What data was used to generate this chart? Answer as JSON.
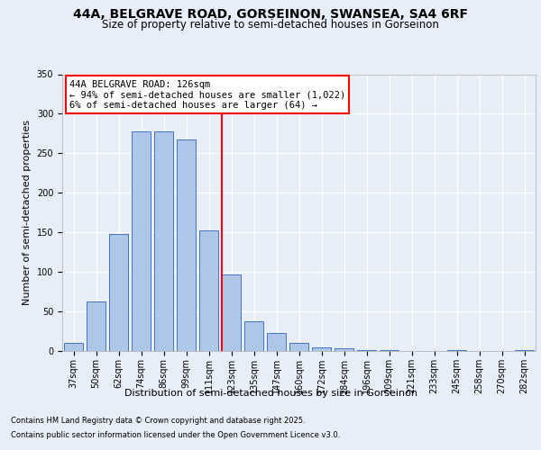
{
  "title": "44A, BELGRAVE ROAD, GORSEINON, SWANSEA, SA4 6RF",
  "subtitle": "Size of property relative to semi-detached houses in Gorseinon",
  "xlabel": "Distribution of semi-detached houses by size in Gorseinon",
  "ylabel": "Number of semi-detached properties",
  "categories": [
    "37sqm",
    "50sqm",
    "62sqm",
    "74sqm",
    "86sqm",
    "99sqm",
    "111sqm",
    "123sqm",
    "135sqm",
    "147sqm",
    "160sqm",
    "172sqm",
    "184sqm",
    "196sqm",
    "209sqm",
    "221sqm",
    "233sqm",
    "245sqm",
    "258sqm",
    "270sqm",
    "282sqm"
  ],
  "values": [
    10,
    63,
    148,
    278,
    278,
    268,
    152,
    97,
    38,
    23,
    10,
    5,
    3,
    1,
    1,
    0,
    0,
    1,
    0,
    0,
    1
  ],
  "bar_color": "#aec6e8",
  "bar_edge_color": "#4472c4",
  "vline_x_idx": 7,
  "vline_color": "red",
  "annotation_title": "44A BELGRAVE ROAD: 126sqm",
  "annotation_line2": "← 94% of semi-detached houses are smaller (1,022)",
  "annotation_line3": "6% of semi-detached houses are larger (64) →",
  "annotation_box_color": "white",
  "annotation_box_edge": "red",
  "ylim": [
    0,
    350
  ],
  "yticks": [
    0,
    50,
    100,
    150,
    200,
    250,
    300,
    350
  ],
  "bg_color": "#e8eef8",
  "plot_bg_color": "#e8eef8",
  "footer_line1": "Contains HM Land Registry data © Crown copyright and database right 2025.",
  "footer_line2": "Contains public sector information licensed under the Open Government Licence v3.0.",
  "title_fontsize": 10,
  "subtitle_fontsize": 8.5,
  "axis_label_fontsize": 8,
  "ylabel_fontsize": 8,
  "tick_fontsize": 7,
  "annotation_fontsize": 7.5,
  "footer_fontsize": 6
}
